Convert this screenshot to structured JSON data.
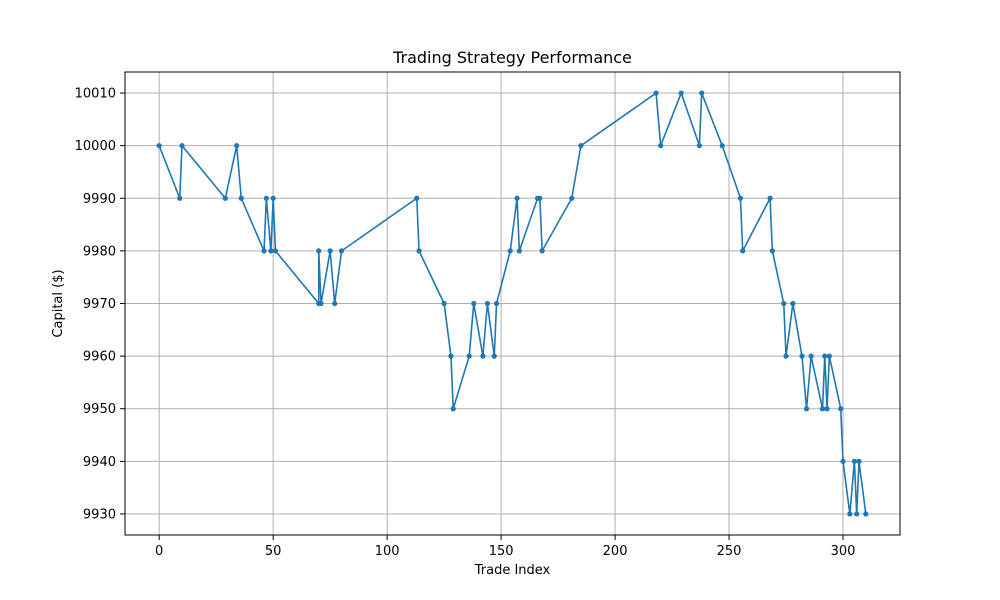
{
  "chart_data": {
    "type": "line",
    "title": "Trading Strategy Performance",
    "xlabel": "Trade Index",
    "ylabel": "Capital ($)",
    "xlim": [
      -15,
      325
    ],
    "ylim": [
      9926,
      10014
    ],
    "xticks": [
      0,
      50,
      100,
      150,
      200,
      250,
      300
    ],
    "yticks": [
      9930,
      9940,
      9950,
      9960,
      9970,
      9980,
      9990,
      10000,
      10010
    ],
    "grid": true,
    "series": [
      {
        "color": "#1f77b4",
        "marker": "circle",
        "x": [
          0,
          9,
          10,
          29,
          34,
          36,
          46,
          47,
          49,
          50,
          51,
          70,
          70,
          71,
          75,
          77,
          80,
          113,
          114,
          125,
          128,
          129,
          136,
          138,
          142,
          144,
          147,
          148,
          154,
          157,
          158,
          166,
          167,
          168,
          181,
          185,
          218,
          220,
          229,
          237,
          238,
          247,
          255,
          256,
          268,
          269,
          274,
          275,
          278,
          282,
          284,
          286,
          291,
          292,
          293,
          294,
          299,
          300,
          303,
          305,
          306,
          307,
          310
        ],
        "y": [
          10000,
          9990,
          10000,
          9990,
          10000,
          9990,
          9980,
          9990,
          9980,
          9990,
          9980,
          9970,
          9980,
          9970,
          9980,
          9970,
          9980,
          9990,
          9980,
          9970,
          9960,
          9950,
          9960,
          9970,
          9960,
          9970,
          9960,
          9970,
          9980,
          9990,
          9980,
          9990,
          9990,
          9980,
          9990,
          10000,
          10010,
          10000,
          10010,
          10000,
          10010,
          10000,
          9990,
          9980,
          9990,
          9980,
          9970,
          9960,
          9970,
          9960,
          9950,
          9960,
          9950,
          9960,
          9950,
          9960,
          9950,
          9940,
          9930,
          9940,
          9930,
          9940,
          9930
        ]
      }
    ]
  }
}
